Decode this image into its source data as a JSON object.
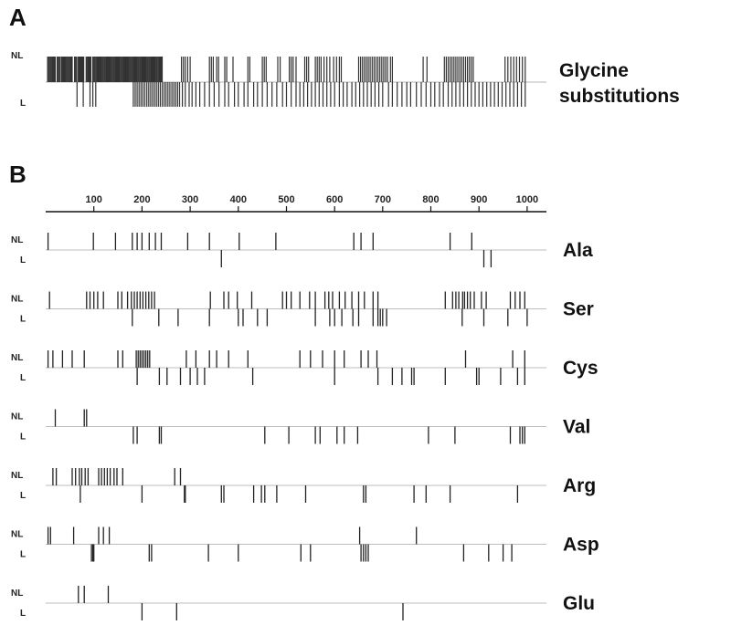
{
  "panels": {
    "a": {
      "label": "A",
      "row_labels": {
        "nl": "NL",
        "l": "L"
      },
      "title_line1": "Glycine",
      "title_line2": "substitutions",
      "nl_positions": [
        4,
        6,
        8,
        10,
        12,
        14,
        16,
        18,
        20,
        24,
        26,
        28,
        30,
        33,
        35,
        37,
        39,
        41,
        43,
        45,
        47,
        49,
        51,
        53,
        55,
        60,
        62,
        64,
        67,
        69,
        71,
        73,
        75,
        77,
        79,
        84,
        86,
        88,
        90,
        92,
        94,
        98,
        100,
        102,
        104,
        106,
        108,
        110,
        112,
        114,
        116,
        118,
        120,
        122,
        124,
        126,
        128,
        130,
        132,
        134,
        136,
        138,
        140,
        142,
        144,
        146,
        148,
        150,
        152,
        154,
        156,
        158,
        160,
        162,
        164,
        166,
        168,
        170,
        172,
        174,
        176,
        178,
        180,
        182,
        184,
        186,
        188,
        190,
        192,
        194,
        196,
        198,
        200,
        202,
        204,
        206,
        208,
        210,
        212,
        214,
        216,
        218,
        220,
        222,
        224,
        226,
        228,
        230,
        232,
        234,
        236,
        238,
        240,
        242,
        282,
        286,
        290,
        295,
        300,
        340,
        344,
        348,
        355,
        359,
        372,
        376,
        389,
        420,
        424,
        450,
        454,
        458,
        482,
        487,
        506,
        510,
        514,
        520,
        538,
        542,
        546,
        560,
        564,
        568,
        572,
        578,
        584,
        590,
        598,
        604,
        610,
        614,
        650,
        654,
        658,
        662,
        666,
        670,
        674,
        678,
        682,
        686,
        690,
        694,
        698,
        702,
        706,
        710,
        716,
        720,
        784,
        792,
        828,
        832,
        836,
        840,
        844,
        848,
        852,
        856,
        860,
        864,
        868,
        872,
        876,
        880,
        884,
        888,
        954,
        960,
        966,
        972,
        978,
        984,
        990,
        996
      ],
      "l_positions": [
        65,
        78,
        92,
        98,
        104,
        182,
        186,
        190,
        194,
        198,
        202,
        206,
        210,
        214,
        218,
        222,
        226,
        230,
        234,
        238,
        242,
        246,
        250,
        254,
        258,
        262,
        266,
        270,
        274,
        278,
        284,
        290,
        298,
        304,
        312,
        320,
        330,
        340,
        350,
        360,
        372,
        380,
        392,
        400,
        412,
        420,
        432,
        440,
        450,
        460,
        470,
        480,
        492,
        500,
        510,
        520,
        528,
        536,
        544,
        552,
        560,
        568,
        576,
        584,
        592,
        600,
        610,
        618,
        626,
        636,
        644,
        652,
        660,
        668,
        676,
        684,
        692,
        700,
        712,
        720,
        730,
        740,
        750,
        758,
        770,
        780,
        790,
        800,
        808,
        818,
        826,
        836,
        844,
        852,
        860,
        868,
        876,
        884,
        892,
        900,
        908,
        916,
        924,
        932,
        940,
        948,
        956,
        964,
        972,
        980,
        988,
        996
      ]
    },
    "b": {
      "label": "B",
      "axis_ticks": [
        "100",
        "200",
        "300",
        "400",
        "500",
        "600",
        "700",
        "800",
        "900",
        "1000"
      ],
      "axis_tick_values": [
        100,
        200,
        300,
        400,
        500,
        600,
        700,
        800,
        900,
        1000
      ],
      "axis_max": 1040,
      "rows": [
        {
          "name": "Ala",
          "nl_label": "NL",
          "l_label": "L",
          "nl": [
            5,
            99,
            145,
            180,
            190,
            200,
            215,
            228,
            240,
            295,
            340,
            402,
            478,
            640,
            655,
            680,
            840,
            885
          ],
          "l": [
            365,
            910,
            925
          ]
        },
        {
          "name": "Ser",
          "nl": [
            8,
            85,
            92,
            100,
            108,
            120,
            150,
            158,
            170,
            178,
            184,
            190,
            196,
            202,
            208,
            214,
            220,
            226,
            342,
            370,
            380,
            398,
            428,
            492,
            500,
            510,
            528,
            548,
            560,
            580,
            588,
            596,
            610,
            622,
            636,
            650,
            662,
            680,
            690,
            830,
            845,
            852,
            858,
            866,
            870,
            876,
            882,
            890,
            905,
            915,
            965,
            975,
            985,
            995
          ],
          "l": [
            180,
            235,
            275,
            340,
            400,
            410,
            440,
            460,
            560,
            590,
            600,
            615,
            638,
            650,
            680,
            690,
            695,
            700,
            708,
            865,
            910,
            960,
            1000
          ],
          "nl_label": "NL",
          "l_label": "L"
        },
        {
          "name": "Cys",
          "nl": [
            5,
            15,
            35,
            55,
            80,
            150,
            160,
            188,
            192,
            196,
            200,
            204,
            208,
            212,
            216,
            292,
            312,
            340,
            355,
            380,
            420,
            528,
            550,
            575,
            600,
            620,
            655,
            670,
            688,
            872,
            970,
            995
          ],
          "l": [
            190,
            236,
            252,
            280,
            300,
            315,
            330,
            430,
            600,
            690,
            720,
            740,
            760,
            765,
            830,
            895,
            900,
            945,
            980,
            995
          ],
          "nl_label": "NL",
          "l_label": "L"
        },
        {
          "name": "Val",
          "nl": [
            20,
            80,
            85
          ],
          "l": [
            182,
            190,
            236,
            240,
            455,
            505,
            560,
            570,
            605,
            620,
            648,
            795,
            850,
            965,
            985,
            990,
            995
          ],
          "nl_label": "NL",
          "l_label": "L"
        },
        {
          "name": "Arg",
          "nl": [
            15,
            22,
            55,
            62,
            70,
            75,
            82,
            88,
            110,
            116,
            122,
            128,
            134,
            142,
            148,
            160,
            268,
            280
          ],
          "l": [
            72,
            200,
            288,
            290,
            365,
            370,
            432,
            448,
            455,
            480,
            540,
            660,
            665,
            765,
            790,
            840,
            980
          ],
          "nl_label": "NL",
          "l_label": "L"
        },
        {
          "name": "Asp",
          "nl": [
            5,
            10,
            58,
            110,
            120,
            132,
            652,
            770
          ],
          "l": [
            95,
            98,
            100,
            215,
            220,
            338,
            400,
            530,
            550,
            655,
            660,
            665,
            670,
            868,
            920,
            950,
            968
          ],
          "nl_label": "NL",
          "l_label": "L"
        },
        {
          "name": "Glu",
          "nl": [
            68,
            80,
            130
          ],
          "l": [
            200,
            272,
            742
          ],
          "nl_label": "NL",
          "l_label": "L"
        }
      ]
    }
  }
}
